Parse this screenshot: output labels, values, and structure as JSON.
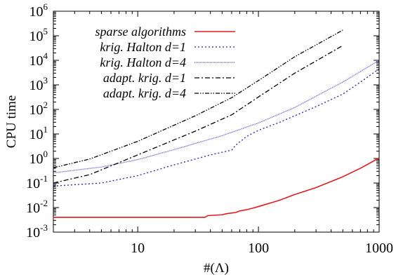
{
  "chart_data": {
    "type": "line",
    "xlabel": "#(Λ)",
    "ylabel": "CPU time",
    "xscale": "log",
    "yscale": "log",
    "xlim": [
      2,
      1000
    ],
    "ylim": [
      0.001,
      1000000
    ],
    "x_ticks": [
      {
        "value": 10,
        "label": "10"
      },
      {
        "value": 100,
        "label": "100"
      },
      {
        "value": 1000,
        "label": "1000"
      }
    ],
    "y_ticks": [
      {
        "value": 0.001,
        "base": "10",
        "exp": "-3"
      },
      {
        "value": 0.01,
        "base": "10",
        "exp": "-2"
      },
      {
        "value": 0.1,
        "base": "10",
        "exp": "-1"
      },
      {
        "value": 1,
        "base": "10",
        "exp": "0"
      },
      {
        "value": 10,
        "base": "10",
        "exp": "1"
      },
      {
        "value": 100,
        "base": "10",
        "exp": "2"
      },
      {
        "value": 1000,
        "base": "10",
        "exp": "3"
      },
      {
        "value": 10000,
        "base": "10",
        "exp": "4"
      },
      {
        "value": 100000,
        "base": "10",
        "exp": "5"
      },
      {
        "value": 1000000,
        "base": "10",
        "exp": "6"
      }
    ],
    "legend_position": "top-left",
    "grid": false,
    "series": [
      {
        "name": "sparse algorithms",
        "color": "#e41a1c",
        "dash": "solid",
        "x": [
          2,
          10,
          36,
          38,
          50,
          55,
          65,
          70,
          80,
          90,
          100,
          150,
          200,
          300,
          500,
          700,
          1000
        ],
        "y": [
          0.004,
          0.004,
          0.004,
          0.0047,
          0.0051,
          0.0057,
          0.0063,
          0.0073,
          0.0082,
          0.0095,
          0.011,
          0.02,
          0.034,
          0.065,
          0.18,
          0.4,
          1.05
        ]
      },
      {
        "name": "krig. Halton  d=1",
        "color": "#2020c0",
        "dash": "dotted",
        "x": [
          2,
          5,
          10,
          20,
          40,
          60,
          65,
          80,
          100,
          150,
          200,
          300,
          500,
          700,
          1000
        ],
        "y": [
          0.075,
          0.1,
          0.2,
          0.55,
          1.4,
          2.2,
          3.5,
          8,
          14,
          30,
          55,
          130,
          420,
          1300,
          4500
        ]
      },
      {
        "name": "krig. Halton  d=4",
        "color": "#5050e0",
        "dash": "fine",
        "x": [
          2,
          5,
          10,
          20,
          50,
          100,
          200,
          500,
          1000
        ],
        "y": [
          0.26,
          0.45,
          0.9,
          2.3,
          8.5,
          28,
          120,
          1300,
          10000
        ]
      },
      {
        "name": "adapt. krig. d=1",
        "color": "#000000",
        "dash": "dashdot",
        "x": [
          2,
          4,
          10,
          30,
          60,
          100,
          200,
          500
        ],
        "y": [
          0.1,
          0.22,
          1.4,
          13,
          60,
          320,
          3000,
          40000
        ]
      },
      {
        "name": "adapt. krig. d=4",
        "color": "#000000",
        "dash": "dashdotdot",
        "x": [
          2,
          4,
          10,
          30,
          60,
          100,
          200,
          500
        ],
        "y": [
          0.42,
          0.95,
          5,
          55,
          300,
          1500,
          14000,
          170000
        ]
      }
    ]
  }
}
